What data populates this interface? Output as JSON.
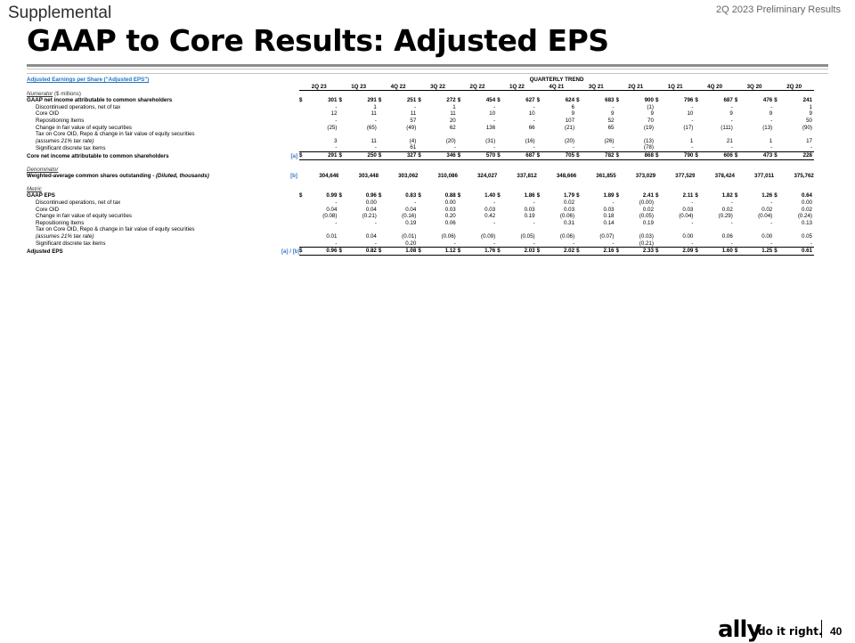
{
  "header": {
    "section": "Supplemental",
    "corner": "2Q 2023 Preliminary Results",
    "title": "GAAP to Core Results: Adjusted EPS"
  },
  "table": {
    "top_label": "Adjusted Earnings per Share (\"Adjusted EPS\")",
    "group_header": "QUARTERLY TREND",
    "columns": [
      "2Q 23",
      "1Q 23",
      "4Q 22",
      "3Q 22",
      "2Q 22",
      "1Q 22",
      "4Q 21",
      "3Q 21",
      "2Q 21",
      "1Q 21",
      "4Q 20",
      "3Q 20",
      "2Q 20"
    ],
    "numerator_label": "Numerator",
    "numerator_unit": "($ millions)",
    "denominator_label": "Denominator",
    "metric_label": "Metric",
    "numerator_rows": [
      {
        "label": "GAAP net income attributable to common shareholders",
        "ref": "",
        "bold": true,
        "dollar": true,
        "indent": false,
        "italic": false,
        "values": [
          "301",
          "291",
          "251",
          "272",
          "454",
          "627",
          "624",
          "683",
          "900",
          "796",
          "687",
          "476",
          "241"
        ]
      },
      {
        "label": "Discontinued operations, net of tax",
        "ref": "",
        "bold": false,
        "dollar": false,
        "indent": true,
        "italic": false,
        "values": [
          "-",
          "1",
          "-",
          "1",
          "-",
          "-",
          "6",
          "-",
          "(1)",
          "-",
          "-",
          "-",
          "1"
        ]
      },
      {
        "label": "Core OID",
        "ref": "",
        "bold": false,
        "dollar": false,
        "indent": true,
        "italic": false,
        "values": [
          "12",
          "11",
          "11",
          "11",
          "10",
          "10",
          "9",
          "9",
          "9",
          "10",
          "9",
          "9",
          "9"
        ]
      },
      {
        "label": "Repositioning Items",
        "ref": "",
        "bold": false,
        "dollar": false,
        "indent": true,
        "italic": false,
        "values": [
          "-",
          "-",
          "57",
          "20",
          "-",
          "-",
          "107",
          "52",
          "70",
          "-",
          "-",
          "-",
          "50"
        ]
      },
      {
        "label": "Change in fair value of equity securities",
        "ref": "",
        "bold": false,
        "dollar": false,
        "indent": true,
        "italic": false,
        "values": [
          "(25)",
          "(65)",
          "(49)",
          "62",
          "136",
          "66",
          "(21)",
          "65",
          "(19)",
          "(17)",
          "(111)",
          "(13)",
          "(90)"
        ]
      },
      {
        "label": "Tax on Core OID, Repo & change in fair value of equity securities",
        "ref": "",
        "bold": false,
        "dollar": false,
        "indent": true,
        "italic": false,
        "values": [
          "",
          "",
          "",
          "",
          "",
          "",
          "",
          "",
          "",
          "",
          "",
          "",
          ""
        ]
      },
      {
        "label": "(assumes 21% tax rate)",
        "ref": "",
        "bold": false,
        "dollar": false,
        "indent": true,
        "italic": true,
        "values": [
          "3",
          "11",
          "(4)",
          "(20)",
          "(31)",
          "(16)",
          "(20)",
          "(26)",
          "(13)",
          "1",
          "21",
          "1",
          "17"
        ]
      },
      {
        "label": "Significant discrete tax items",
        "ref": "",
        "bold": false,
        "dollar": false,
        "indent": true,
        "italic": false,
        "underline": true,
        "values": [
          "-",
          "-",
          "61",
          "-",
          "-",
          "-",
          "-",
          "-",
          "(78)",
          "-",
          "-",
          "-",
          "-"
        ]
      },
      {
        "label": "Core net income attributable to common shareholders",
        "ref": "[a]",
        "bold": true,
        "dollar": true,
        "indent": false,
        "italic": false,
        "underline": true,
        "values": [
          "291",
          "250",
          "327",
          "346",
          "570",
          "687",
          "705",
          "782",
          "868",
          "790",
          "606",
          "473",
          "228"
        ]
      }
    ],
    "denominator_rows": [
      {
        "label": "Weighted-average common shares outstanding - ",
        "label_italic": "(Diluted, thousands)",
        "ref": "[b]",
        "bold": true,
        "dollar": false,
        "indent": false,
        "italic": false,
        "values": [
          "304,646",
          "303,448",
          "303,062",
          "310,086",
          "324,027",
          "337,812",
          "348,666",
          "361,855",
          "373,029",
          "377,529",
          "378,424",
          "377,011",
          "375,762"
        ]
      }
    ],
    "metric_rows": [
      {
        "label": "GAAP EPS",
        "ref": "",
        "bold": true,
        "dollar": true,
        "indent": false,
        "italic": false,
        "values": [
          "0.99",
          "0.96",
          "0.83",
          "0.88",
          "1.40",
          "1.86",
          "1.79",
          "1.89",
          "2.41",
          "2.11",
          "1.82",
          "1.26",
          "0.64"
        ]
      },
      {
        "label": "Discontinued operations, net of tax",
        "ref": "",
        "bold": false,
        "dollar": false,
        "indent": true,
        "italic": false,
        "values": [
          "-",
          "0.00",
          "-",
          "0.00",
          "-",
          "-",
          "0.02",
          "-",
          "(0.00)",
          "-",
          "-",
          "-",
          "0.00"
        ]
      },
      {
        "label": "Core OID",
        "ref": "",
        "bold": false,
        "dollar": false,
        "indent": true,
        "italic": false,
        "values": [
          "0.04",
          "0.04",
          "0.04",
          "0.03",
          "0.03",
          "0.03",
          "0.03",
          "0.03",
          "0.02",
          "0.03",
          "0.02",
          "0.02",
          "0.02"
        ]
      },
      {
        "label": "Change in fair value of equity securities",
        "ref": "",
        "bold": false,
        "dollar": false,
        "indent": true,
        "italic": false,
        "values": [
          "(0.08)",
          "(0.21)",
          "(0.16)",
          "0.20",
          "0.42",
          "0.19",
          "(0.06)",
          "0.18",
          "(0.05)",
          "(0.04)",
          "(0.29)",
          "(0.04)",
          "(0.24)"
        ]
      },
      {
        "label": "Repositioning Items",
        "ref": "",
        "bold": false,
        "dollar": false,
        "indent": true,
        "italic": false,
        "values": [
          "-",
          "-",
          "0.19",
          "0.06",
          "-",
          "-",
          "0.31",
          "0.14",
          "0.19",
          "-",
          "-",
          "-",
          "0.13"
        ]
      },
      {
        "label": "Tax on Core OID, Repo & change in fair value of equity securities",
        "ref": "",
        "bold": false,
        "dollar": false,
        "indent": true,
        "italic": false,
        "values": [
          "",
          "",
          "",
          "",
          "",
          "",
          "",
          "",
          "",
          "",
          "",
          "",
          ""
        ]
      },
      {
        "label": "(assumes 21% tax rate)",
        "ref": "",
        "bold": false,
        "dollar": false,
        "indent": true,
        "italic": true,
        "values": [
          "0.01",
          "0.04",
          "(0.01)",
          "(0.06)",
          "(0.09)",
          "(0.05)",
          "(0.06)",
          "(0.07)",
          "(0.03)",
          "0.00",
          "0.06",
          "0.00",
          "0.05"
        ]
      },
      {
        "label": "Significant discrete tax items",
        "ref": "",
        "bold": false,
        "dollar": false,
        "indent": true,
        "italic": false,
        "underline": true,
        "values": [
          "-",
          "-",
          "0.20",
          "-",
          "-",
          "-",
          "-",
          "-",
          "(0.21)",
          "-",
          "-",
          "-",
          "-"
        ]
      },
      {
        "label": "Adjusted EPS",
        "ref": "[a] / [b]",
        "bold": true,
        "dollar": true,
        "indent": false,
        "italic": false,
        "underline": true,
        "values": [
          "0.96",
          "0.82",
          "1.08",
          "1.12",
          "1.76",
          "2.03",
          "2.02",
          "2.16",
          "2.33",
          "2.09",
          "1.60",
          "1.25",
          "0.61"
        ]
      }
    ]
  },
  "footer": {
    "logo": "ally",
    "tagline": "do it right.",
    "page_number": "40"
  }
}
